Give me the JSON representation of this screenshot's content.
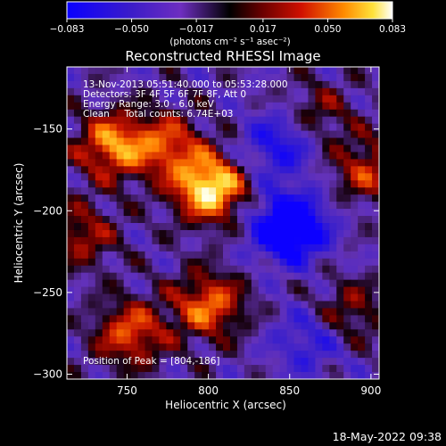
{
  "chart_data": {
    "type": "heatmap",
    "title": "Reconstructed RHESSI Image",
    "xlabel": "Heliocentric X (arcsec)",
    "ylabel": "Heliocentric Y (arcsec)",
    "xlim": [
      713,
      905
    ],
    "ylim": [
      -303,
      -112
    ],
    "x_ticks": [
      750,
      800,
      850,
      900
    ],
    "y_ticks": [
      -150,
      -200,
      -250,
      -300
    ],
    "colorbar": {
      "range": [
        -0.083,
        0.083
      ],
      "tick_values": [
        -0.083,
        -0.05,
        -0.017,
        0.017,
        0.05,
        0.083
      ],
      "tick_labels": [
        "−0.083",
        "−0.050",
        "−0.017",
        "0.017",
        "0.050",
        "0.083"
      ],
      "units": "(photons cm⁻² s⁻¹ asec⁻²)"
    },
    "info_lines": [
      "13-Nov-2013 05:51:40.000 to 05:53:28.000",
      "Detectors: 3F 4F 5F 6F 7F 8F, Att 0",
      "Energy Range: 3.0 - 6.0 keV",
      "Clean     Total counts: 6.74E+03"
    ],
    "peak_label": "Position of Peak = [804,-186]",
    "peak": [
      804,
      -186
    ],
    "regions": [
      {
        "name": "bright-source",
        "x": 801,
        "y": -186,
        "intensity": 0.083
      },
      {
        "name": "upper-left-emission",
        "x": 741,
        "y": -160,
        "intensity": 0.06
      },
      {
        "name": "upper-central-emission",
        "x": 775,
        "y": -160,
        "intensity": 0.045
      },
      {
        "name": "left-edge-emission",
        "x": 722,
        "y": -215,
        "intensity": 0.035
      },
      {
        "name": "lower-central-emission",
        "x": 800,
        "y": -258,
        "intensity": 0.055
      },
      {
        "name": "lower-left-emission",
        "x": 752,
        "y": -275,
        "intensity": 0.05
      },
      {
        "name": "right-edge-emission",
        "x": 898,
        "y": -175,
        "intensity": 0.04
      },
      {
        "name": "right-upper-emission",
        "x": 868,
        "y": -140,
        "intensity": 0.025
      },
      {
        "name": "lower-right-emission",
        "x": 887,
        "y": -262,
        "intensity": 0.03
      },
      {
        "name": "negative-lobe",
        "x": 850,
        "y": -210,
        "intensity": -0.083
      },
      {
        "name": "negative-lobe-upper",
        "x": 843,
        "y": -160,
        "intensity": -0.04
      },
      {
        "name": "negative-lobe-lower",
        "x": 862,
        "y": -280,
        "intensity": -0.03
      }
    ],
    "colormap": "red-temperature with blue-purple negative end"
  },
  "timestamp": "18-May-2022 09:38"
}
